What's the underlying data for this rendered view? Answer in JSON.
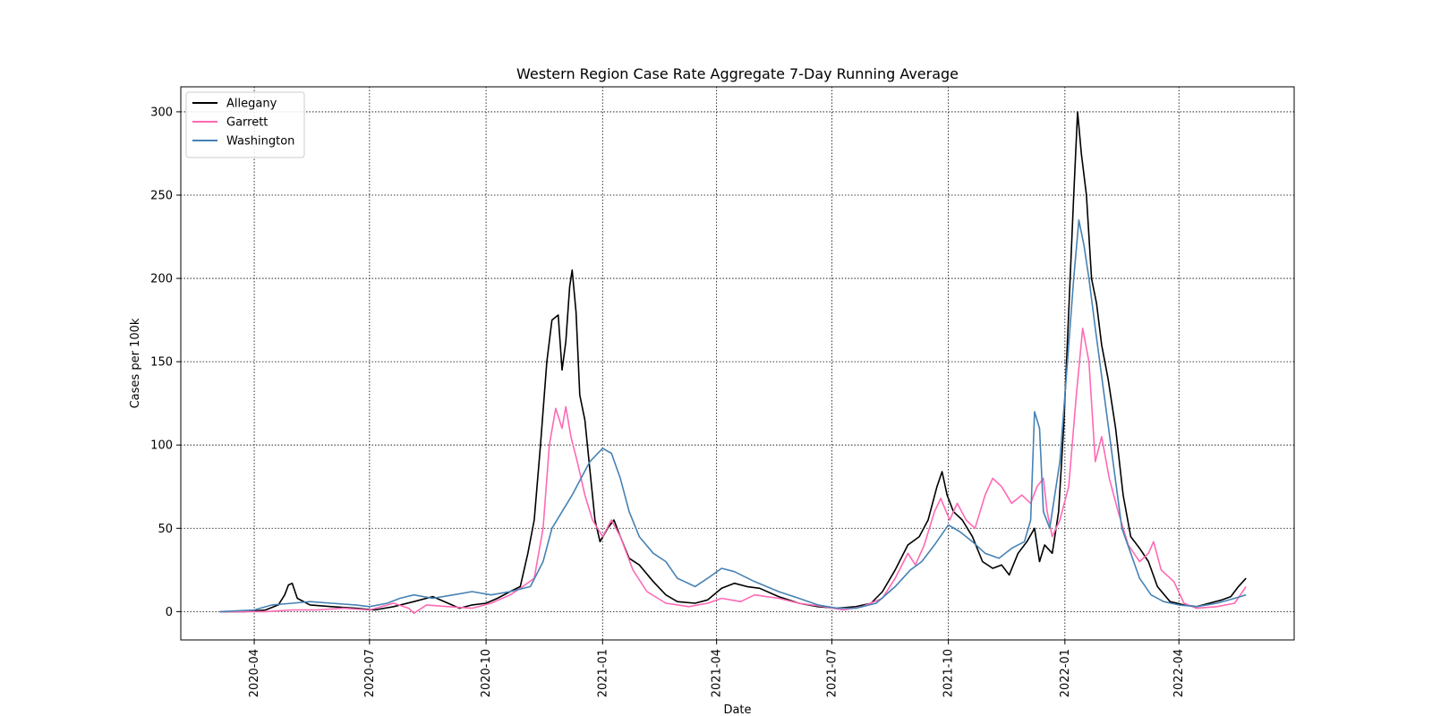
{
  "chart_data": {
    "type": "line",
    "title": "Western Region Case Rate Aggregate 7-Day Running Average",
    "xlabel": "Date",
    "ylabel": "Cases per 100k",
    "xlim": [
      "2020-02-03",
      "2022-07-01"
    ],
    "ylim": [
      -17,
      315
    ],
    "grid": true,
    "grid_style": "dotted",
    "legend_position": "upper-left",
    "x_ticks": [
      "2020-04",
      "2020-07",
      "2020-10",
      "2021-01",
      "2021-04",
      "2021-07",
      "2021-10",
      "2022-01",
      "2022-04"
    ],
    "y_ticks": [
      0,
      50,
      100,
      150,
      200,
      250,
      300
    ],
    "series": [
      {
        "name": "Allegany",
        "color": "#000000",
        "points": [
          [
            "2020-03-05",
            0
          ],
          [
            "2020-03-25",
            0
          ],
          [
            "2020-04-10",
            1
          ],
          [
            "2020-04-20",
            4
          ],
          [
            "2020-04-25",
            10
          ],
          [
            "2020-04-28",
            16
          ],
          [
            "2020-05-01",
            17
          ],
          [
            "2020-05-05",
            8
          ],
          [
            "2020-05-15",
            4
          ],
          [
            "2020-06-01",
            3
          ],
          [
            "2020-06-20",
            2
          ],
          [
            "2020-07-05",
            1
          ],
          [
            "2020-07-20",
            3
          ],
          [
            "2020-08-05",
            6
          ],
          [
            "2020-08-20",
            9
          ],
          [
            "2020-09-01",
            5
          ],
          [
            "2020-09-10",
            2
          ],
          [
            "2020-09-20",
            4
          ],
          [
            "2020-10-01",
            5
          ],
          [
            "2020-10-10",
            8
          ],
          [
            "2020-10-20",
            12
          ],
          [
            "2020-10-28",
            15
          ],
          [
            "2020-11-03",
            35
          ],
          [
            "2020-11-08",
            55
          ],
          [
            "2020-11-13",
            100
          ],
          [
            "2020-11-18",
            150
          ],
          [
            "2020-11-22",
            175
          ],
          [
            "2020-11-27",
            178
          ],
          [
            "2020-11-30",
            145
          ],
          [
            "2020-12-03",
            162
          ],
          [
            "2020-12-06",
            195
          ],
          [
            "2020-12-08",
            205
          ],
          [
            "2020-12-11",
            180
          ],
          [
            "2020-12-14",
            130
          ],
          [
            "2020-12-18",
            115
          ],
          [
            "2020-12-22",
            85
          ],
          [
            "2020-12-26",
            55
          ],
          [
            "2020-12-30",
            42
          ],
          [
            "2021-01-05",
            50
          ],
          [
            "2021-01-10",
            55
          ],
          [
            "2021-01-15",
            45
          ],
          [
            "2021-01-22",
            32
          ],
          [
            "2021-01-30",
            28
          ],
          [
            "2021-02-10",
            18
          ],
          [
            "2021-02-20",
            10
          ],
          [
            "2021-03-01",
            6
          ],
          [
            "2021-03-15",
            5
          ],
          [
            "2021-03-25",
            7
          ],
          [
            "2021-04-05",
            14
          ],
          [
            "2021-04-15",
            17
          ],
          [
            "2021-04-25",
            15
          ],
          [
            "2021-05-05",
            14
          ],
          [
            "2021-05-20",
            9
          ],
          [
            "2021-06-05",
            5
          ],
          [
            "2021-06-20",
            3
          ],
          [
            "2021-07-05",
            2
          ],
          [
            "2021-07-20",
            3
          ],
          [
            "2021-08-01",
            5
          ],
          [
            "2021-08-10",
            12
          ],
          [
            "2021-08-20",
            25
          ],
          [
            "2021-08-30",
            40
          ],
          [
            "2021-09-08",
            45
          ],
          [
            "2021-09-15",
            55
          ],
          [
            "2021-09-22",
            75
          ],
          [
            "2021-09-26",
            84
          ],
          [
            "2021-09-30",
            70
          ],
          [
            "2021-10-05",
            60
          ],
          [
            "2021-10-12",
            55
          ],
          [
            "2021-10-20",
            45
          ],
          [
            "2021-10-28",
            30
          ],
          [
            "2021-11-05",
            26
          ],
          [
            "2021-11-12",
            28
          ],
          [
            "2021-11-18",
            22
          ],
          [
            "2021-11-25",
            35
          ],
          [
            "2021-12-02",
            42
          ],
          [
            "2021-12-08",
            50
          ],
          [
            "2021-12-12",
            30
          ],
          [
            "2021-12-16",
            40
          ],
          [
            "2021-12-22",
            35
          ],
          [
            "2021-12-27",
            60
          ],
          [
            "2021-12-31",
            110
          ],
          [
            "2022-01-04",
            180
          ],
          [
            "2022-01-08",
            250
          ],
          [
            "2022-01-11",
            300
          ],
          [
            "2022-01-14",
            275
          ],
          [
            "2022-01-18",
            250
          ],
          [
            "2022-01-22",
            200
          ],
          [
            "2022-01-26",
            185
          ],
          [
            "2022-01-30",
            160
          ],
          [
            "2022-02-04",
            140
          ],
          [
            "2022-02-10",
            110
          ],
          [
            "2022-02-16",
            70
          ],
          [
            "2022-02-22",
            45
          ],
          [
            "2022-03-01",
            38
          ],
          [
            "2022-03-08",
            30
          ],
          [
            "2022-03-15",
            15
          ],
          [
            "2022-03-25",
            6
          ],
          [
            "2022-04-05",
            4
          ],
          [
            "2022-04-15",
            3
          ],
          [
            "2022-04-25",
            5
          ],
          [
            "2022-05-05",
            7
          ],
          [
            "2022-05-12",
            9
          ],
          [
            "2022-05-18",
            15
          ],
          [
            "2022-05-24",
            20
          ]
        ]
      },
      {
        "name": "Garrett",
        "color": "#ff69b4",
        "points": [
          [
            "2020-03-05",
            0
          ],
          [
            "2020-04-10",
            0
          ],
          [
            "2020-05-01",
            1
          ],
          [
            "2020-05-20",
            1
          ],
          [
            "2020-06-10",
            2
          ],
          [
            "2020-07-01",
            1
          ],
          [
            "2020-07-20",
            5
          ],
          [
            "2020-08-01",
            2
          ],
          [
            "2020-08-05",
            -1
          ],
          [
            "2020-08-15",
            4
          ],
          [
            "2020-09-01",
            3
          ],
          [
            "2020-09-20",
            2
          ],
          [
            "2020-10-05",
            5
          ],
          [
            "2020-10-20",
            10
          ],
          [
            "2020-10-30",
            15
          ],
          [
            "2020-11-08",
            20
          ],
          [
            "2020-11-15",
            50
          ],
          [
            "2020-11-20",
            100
          ],
          [
            "2020-11-25",
            122
          ],
          [
            "2020-11-30",
            110
          ],
          [
            "2020-12-03",
            123
          ],
          [
            "2020-12-07",
            105
          ],
          [
            "2020-12-12",
            90
          ],
          [
            "2020-12-18",
            70
          ],
          [
            "2020-12-24",
            55
          ],
          [
            "2021-01-01",
            45
          ],
          [
            "2021-01-08",
            55
          ],
          [
            "2021-01-15",
            45
          ],
          [
            "2021-01-25",
            25
          ],
          [
            "2021-02-05",
            12
          ],
          [
            "2021-02-20",
            5
          ],
          [
            "2021-03-10",
            3
          ],
          [
            "2021-03-25",
            5
          ],
          [
            "2021-04-05",
            8
          ],
          [
            "2021-04-20",
            6
          ],
          [
            "2021-05-01",
            10
          ],
          [
            "2021-05-20",
            8
          ],
          [
            "2021-06-05",
            5
          ],
          [
            "2021-06-25",
            3
          ],
          [
            "2021-07-10",
            1
          ],
          [
            "2021-07-25",
            3
          ],
          [
            "2021-08-10",
            8
          ],
          [
            "2021-08-20",
            20
          ],
          [
            "2021-08-30",
            35
          ],
          [
            "2021-09-05",
            28
          ],
          [
            "2021-09-12",
            40
          ],
          [
            "2021-09-20",
            60
          ],
          [
            "2021-09-25",
            68
          ],
          [
            "2021-10-02",
            55
          ],
          [
            "2021-10-08",
            65
          ],
          [
            "2021-10-15",
            55
          ],
          [
            "2021-10-22",
            50
          ],
          [
            "2021-10-30",
            70
          ],
          [
            "2021-11-05",
            80
          ],
          [
            "2021-11-12",
            75
          ],
          [
            "2021-11-20",
            65
          ],
          [
            "2021-11-28",
            70
          ],
          [
            "2021-12-05",
            65
          ],
          [
            "2021-12-10",
            75
          ],
          [
            "2021-12-15",
            80
          ],
          [
            "2021-12-18",
            60
          ],
          [
            "2021-12-22",
            45
          ],
          [
            "2021-12-28",
            55
          ],
          [
            "2022-01-04",
            75
          ],
          [
            "2022-01-10",
            130
          ],
          [
            "2022-01-15",
            170
          ],
          [
            "2022-01-20",
            150
          ],
          [
            "2022-01-25",
            90
          ],
          [
            "2022-01-30",
            105
          ],
          [
            "2022-02-05",
            80
          ],
          [
            "2022-02-12",
            60
          ],
          [
            "2022-02-20",
            40
          ],
          [
            "2022-03-01",
            30
          ],
          [
            "2022-03-08",
            35
          ],
          [
            "2022-03-12",
            42
          ],
          [
            "2022-03-18",
            25
          ],
          [
            "2022-03-28",
            18
          ],
          [
            "2022-04-05",
            5
          ],
          [
            "2022-04-15",
            2
          ],
          [
            "2022-05-01",
            3
          ],
          [
            "2022-05-15",
            5
          ],
          [
            "2022-05-24",
            15
          ]
        ]
      },
      {
        "name": "Washington",
        "color": "#4682b4",
        "points": [
          [
            "2020-03-05",
            0
          ],
          [
            "2020-04-01",
            1
          ],
          [
            "2020-04-15",
            4
          ],
          [
            "2020-05-01",
            5
          ],
          [
            "2020-05-15",
            6
          ],
          [
            "2020-06-01",
            5
          ],
          [
            "2020-06-20",
            4
          ],
          [
            "2020-07-01",
            3
          ],
          [
            "2020-07-15",
            5
          ],
          [
            "2020-07-25",
            8
          ],
          [
            "2020-08-05",
            10
          ],
          [
            "2020-08-20",
            8
          ],
          [
            "2020-09-05",
            10
          ],
          [
            "2020-09-20",
            12
          ],
          [
            "2020-10-05",
            10
          ],
          [
            "2020-10-20",
            12
          ],
          [
            "2020-11-05",
            15
          ],
          [
            "2020-11-15",
            30
          ],
          [
            "2020-11-22",
            50
          ],
          [
            "2020-11-30",
            60
          ],
          [
            "2020-12-08",
            70
          ],
          [
            "2020-12-15",
            80
          ],
          [
            "2020-12-22",
            90
          ],
          [
            "2021-01-01",
            98
          ],
          [
            "2021-01-08",
            95
          ],
          [
            "2021-01-15",
            80
          ],
          [
            "2021-01-22",
            60
          ],
          [
            "2021-01-30",
            45
          ],
          [
            "2021-02-10",
            35
          ],
          [
            "2021-02-20",
            30
          ],
          [
            "2021-03-01",
            20
          ],
          [
            "2021-03-15",
            15
          ],
          [
            "2021-03-25",
            20
          ],
          [
            "2021-04-05",
            26
          ],
          [
            "2021-04-15",
            24
          ],
          [
            "2021-05-01",
            18
          ],
          [
            "2021-05-20",
            12
          ],
          [
            "2021-06-05",
            8
          ],
          [
            "2021-06-20",
            4
          ],
          [
            "2021-07-05",
            2
          ],
          [
            "2021-07-20",
            2
          ],
          [
            "2021-08-05",
            5
          ],
          [
            "2021-08-20",
            15
          ],
          [
            "2021-09-01",
            25
          ],
          [
            "2021-09-10",
            30
          ],
          [
            "2021-09-20",
            40
          ],
          [
            "2021-10-01",
            52
          ],
          [
            "2021-10-10",
            48
          ],
          [
            "2021-10-20",
            42
          ],
          [
            "2021-10-30",
            35
          ],
          [
            "2021-11-10",
            32
          ],
          [
            "2021-11-20",
            38
          ],
          [
            "2021-11-30",
            42
          ],
          [
            "2021-12-05",
            55
          ],
          [
            "2021-12-08",
            120
          ],
          [
            "2021-12-12",
            110
          ],
          [
            "2021-12-15",
            60
          ],
          [
            "2021-12-20",
            50
          ],
          [
            "2021-12-28",
            90
          ],
          [
            "2022-01-04",
            160
          ],
          [
            "2022-01-08",
            200
          ],
          [
            "2022-01-12",
            235
          ],
          [
            "2022-01-16",
            220
          ],
          [
            "2022-01-20",
            200
          ],
          [
            "2022-01-25",
            170
          ],
          [
            "2022-02-01",
            130
          ],
          [
            "2022-02-08",
            90
          ],
          [
            "2022-02-15",
            50
          ],
          [
            "2022-02-22",
            35
          ],
          [
            "2022-03-01",
            20
          ],
          [
            "2022-03-10",
            10
          ],
          [
            "2022-03-20",
            6
          ],
          [
            "2022-04-01",
            4
          ],
          [
            "2022-04-15",
            3
          ],
          [
            "2022-05-01",
            5
          ],
          [
            "2022-05-15",
            8
          ],
          [
            "2022-05-24",
            10
          ]
        ]
      }
    ]
  }
}
